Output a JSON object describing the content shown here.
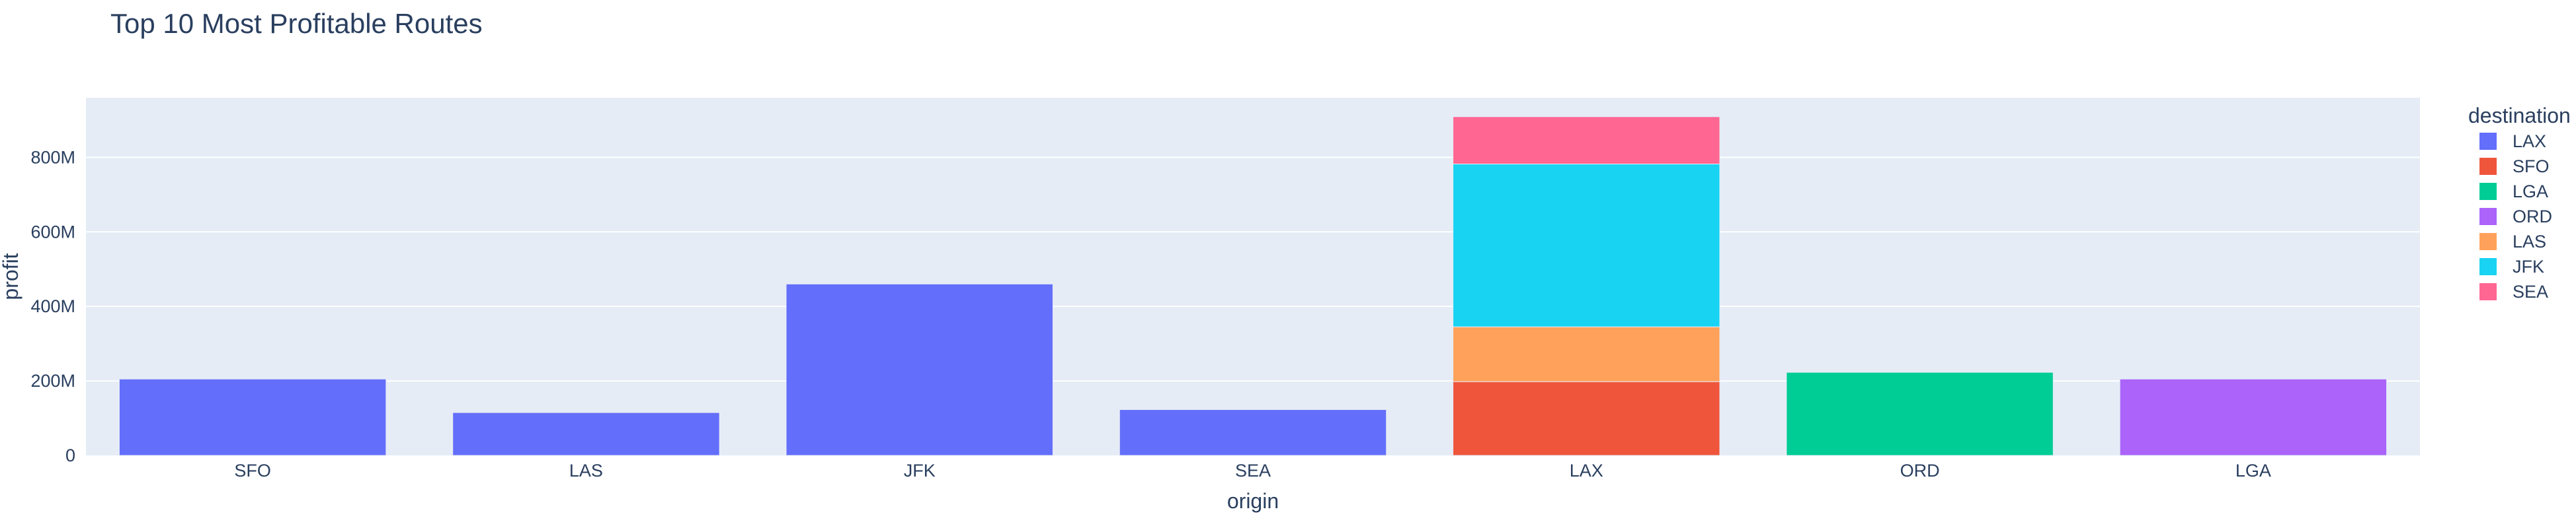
{
  "chart_data": {
    "type": "bar",
    "barmode": "stack",
    "title": "Top 10 Most Profitable Routes",
    "xlabel": "origin",
    "ylabel": "profit",
    "categories": [
      "SFO",
      "LAS",
      "JFK",
      "SEA",
      "LAX",
      "ORD",
      "LGA"
    ],
    "ylim": [
      0,
      960000000
    ],
    "yticks": [
      {
        "value": 0,
        "label": "0"
      },
      {
        "value": 200000000,
        "label": "200M"
      },
      {
        "value": 400000000,
        "label": "400M"
      },
      {
        "value": 600000000,
        "label": "600M"
      },
      {
        "value": 800000000,
        "label": "800M"
      }
    ],
    "grid": true,
    "legend_title": "destination",
    "legend_placement": "right",
    "series": [
      {
        "name": "LAX",
        "color": "#636efa",
        "values": [
          205000000,
          115000000,
          460000000,
          123000000,
          0,
          0,
          0
        ]
      },
      {
        "name": "SFO",
        "color": "#EF553B",
        "values": [
          0,
          0,
          0,
          0,
          198000000,
          0,
          0
        ]
      },
      {
        "name": "LGA",
        "color": "#00cc96",
        "values": [
          0,
          0,
          0,
          0,
          0,
          223000000,
          0
        ]
      },
      {
        "name": "ORD",
        "color": "#ab63fa",
        "values": [
          0,
          0,
          0,
          0,
          0,
          0,
          205000000
        ]
      },
      {
        "name": "LAS",
        "color": "#FFA15A",
        "values": [
          0,
          0,
          0,
          0,
          147000000,
          0,
          0
        ]
      },
      {
        "name": "JFK",
        "color": "#19d3f3",
        "values": [
          0,
          0,
          0,
          0,
          437000000,
          0,
          0
        ]
      },
      {
        "name": "SEA",
        "color": "#FF6692",
        "values": [
          0,
          0,
          0,
          0,
          127000000,
          0,
          0
        ]
      }
    ],
    "colors": {
      "plot_bg": "#E5ECF6",
      "grid": "#ffffff",
      "text": "#2a3f5f"
    }
  }
}
